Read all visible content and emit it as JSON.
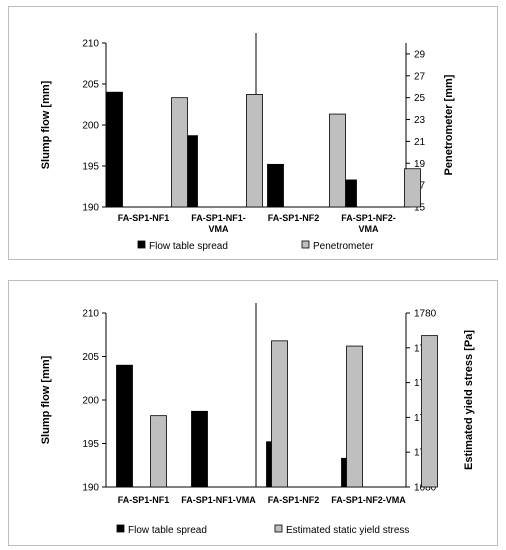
{
  "chart_data": [
    {
      "type": "bar",
      "categories": [
        [
          "FA-SP1-NF1"
        ],
        [
          "FA-SP1-NF1-",
          "VMA"
        ],
        [
          "FA-SP1-NF2"
        ],
        [
          "FA-SP1-NF2-",
          "VMA"
        ]
      ],
      "series": [
        {
          "name": "Flow table spread",
          "axis": "left",
          "color": "#000000",
          "values": [
            204,
            198.7,
            195.2,
            193.3
          ]
        },
        {
          "name": "Penetrometer",
          "axis": "right",
          "color": "#bfbfbf",
          "values": [
            25,
            25.3,
            23.5,
            18.5
          ]
        }
      ],
      "ylabel": "Slump flow  [mm]",
      "ylim": [
        190,
        210
      ],
      "yticks": [
        190,
        195,
        200,
        205,
        210
      ],
      "y2label": "Penetrometer [mm]",
      "y2lim": [
        15,
        30
      ],
      "y2ticks": [
        15,
        17,
        19,
        21,
        23,
        25,
        27,
        29
      ],
      "divider": "between-categories-2-and-3",
      "legend": "bottom"
    },
    {
      "type": "bar",
      "categories": [
        [
          "FA-SP1-NF1"
        ],
        [
          "FA-SP1-NF1-VMA"
        ],
        [
          "FA-SP1-NF2"
        ],
        [
          "FA-SP1-NF2-VMA"
        ]
      ],
      "series": [
        {
          "name": "Flow table spread",
          "axis": "left",
          "color": "#000000",
          "values": [
            204,
            198.7,
            195.2,
            193.3
          ]
        },
        {
          "name": "Estimated static yield stress",
          "axis": "right",
          "color": "#bfbfbf",
          "values": [
            1721,
            1764,
            1761,
            1767
          ]
        }
      ],
      "ylabel": "Slump flow  [mm]",
      "ylim": [
        190,
        210
      ],
      "yticks": [
        190,
        195,
        200,
        205,
        210
      ],
      "y2label": "Estimated yield stress [Pa]",
      "y2lim": [
        1680,
        1780
      ],
      "y2ticks": [
        1680,
        1700,
        1720,
        1740,
        1760,
        1780
      ],
      "divider": "between-categories-2-and-3",
      "legend": "bottom"
    }
  ]
}
